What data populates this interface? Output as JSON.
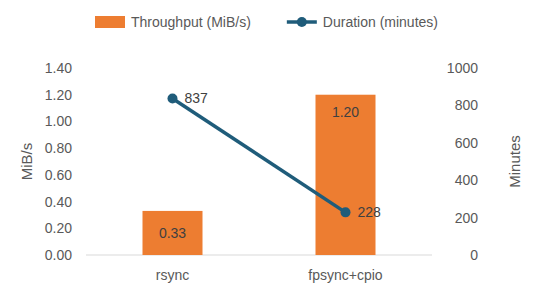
{
  "chart_data": {
    "type": "bar",
    "categories": [
      "rsync",
      "fpsync+cpio"
    ],
    "series": [
      {
        "name": "Throughput (MiB/s)",
        "type": "bar",
        "color": "#ed7d31",
        "values": [
          0.33,
          1.2
        ],
        "value_labels": [
          "0.33",
          "1.20"
        ]
      },
      {
        "name": "Duration (minutes)",
        "type": "line",
        "color": "#1f5c7a",
        "marker": "circle",
        "axis": "y2",
        "values": [
          837,
          228
        ]
      }
    ],
    "ylabel": "MiB/s",
    "y2label": "Minutes",
    "ylim": [
      0,
      1.4
    ],
    "yticks": [
      {
        "value": 0,
        "label": "0.00"
      },
      {
        "value": 0.2,
        "label": "0.20"
      },
      {
        "value": 0.4,
        "label": "0.40"
      },
      {
        "value": 0.6,
        "label": "0.60"
      },
      {
        "value": 0.8,
        "label": "0.80"
      },
      {
        "value": 1,
        "label": "1.00"
      },
      {
        "value": 1.2,
        "label": "1.20"
      },
      {
        "value": 1.4,
        "label": "1.40"
      }
    ],
    "y2lim": [
      0,
      1000
    ],
    "y2ticks": [
      0,
      200,
      400,
      600,
      800,
      1000
    ],
    "grid": false,
    "legend": "top",
    "data_labels": true
  }
}
